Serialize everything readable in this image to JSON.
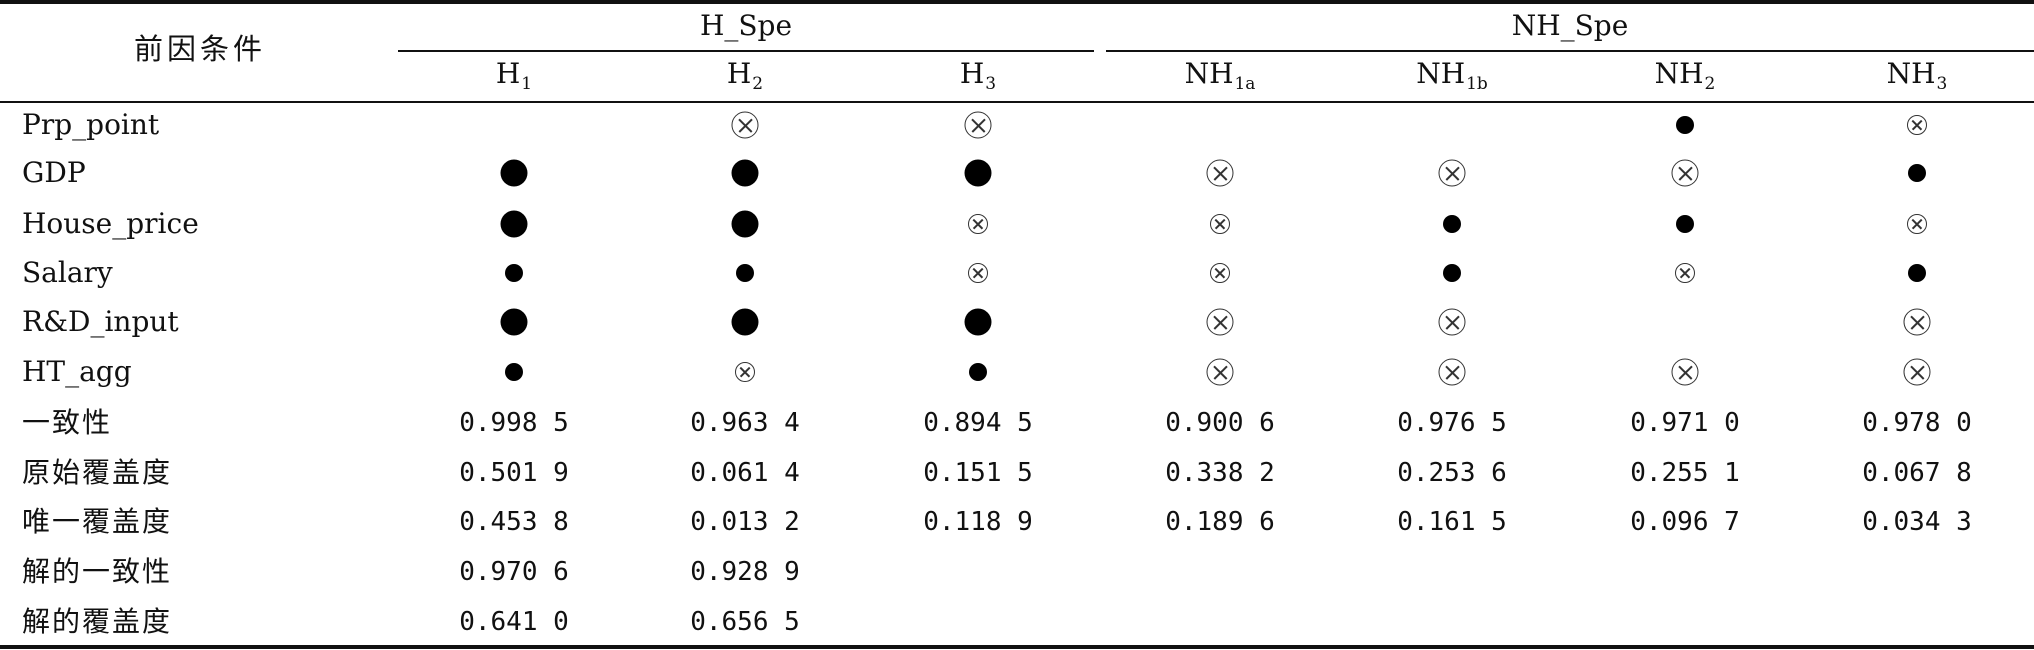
{
  "table": {
    "corner_header": "前因条件",
    "groups": [
      {
        "label": "H_Spe"
      },
      {
        "label": "NH_Spe"
      }
    ],
    "columns": [
      {
        "base": "H",
        "sub": "1"
      },
      {
        "base": "H",
        "sub": "2"
      },
      {
        "base": "H",
        "sub": "3"
      },
      {
        "base": "NH",
        "sub": "1a"
      },
      {
        "base": "NH",
        "sub": "1b"
      },
      {
        "base": "NH",
        "sub": "2"
      },
      {
        "base": "NH",
        "sub": "3"
      }
    ],
    "symbol_legend_names": [
      "core-present-icon",
      "peripheral-present-icon",
      "core-absent-icon",
      "peripheral-absent-icon"
    ],
    "condition_rows": [
      {
        "label": "Prp_point",
        "cells": [
          "",
          "core-absent",
          "core-absent",
          "",
          "",
          "peripheral-present",
          "peripheral-absent"
        ]
      },
      {
        "label": "GDP",
        "cells": [
          "core-present",
          "core-present",
          "core-present",
          "core-absent",
          "core-absent",
          "core-absent",
          "peripheral-present"
        ]
      },
      {
        "label": "House_price",
        "cells": [
          "core-present",
          "core-present",
          "peripheral-absent",
          "peripheral-absent",
          "peripheral-present",
          "peripheral-present",
          "peripheral-absent"
        ]
      },
      {
        "label": "Salary",
        "cells": [
          "peripheral-present",
          "peripheral-present",
          "peripheral-absent",
          "peripheral-absent",
          "peripheral-present",
          "peripheral-absent",
          "peripheral-present"
        ]
      },
      {
        "label": "R&D_input",
        "cells": [
          "core-present",
          "core-present",
          "core-present",
          "core-absent",
          "core-absent",
          "",
          "core-absent"
        ]
      },
      {
        "label": "HT_agg",
        "cells": [
          "peripheral-present",
          "peripheral-absent",
          "peripheral-present",
          "core-absent",
          "core-absent",
          "core-absent",
          "core-absent"
        ]
      }
    ],
    "metric_rows": [
      {
        "label": "一致性",
        "values": [
          "0.998 5",
          "0.963 4",
          "0.894 5",
          "0.900 6",
          "0.976 5",
          "0.971 0",
          "0.978 0"
        ]
      },
      {
        "label": "原始覆盖度",
        "values": [
          "0.501 9",
          "0.061 4",
          "0.151 5",
          "0.338 2",
          "0.253 6",
          "0.255 1",
          "0.067 8"
        ]
      },
      {
        "label": "唯一覆盖度",
        "values": [
          "0.453 8",
          "0.013 2",
          "0.118 9",
          "0.189 6",
          "0.161 5",
          "0.096 7",
          "0.034 3"
        ]
      },
      {
        "label": "解的一致性",
        "values": [
          "0.970 6",
          "0.928 9",
          "",
          "",
          "",
          "",
          ""
        ]
      },
      {
        "label": "解的覆盖度",
        "values": [
          "0.641 0",
          "0.656 5",
          "",
          "",
          "",
          "",
          ""
        ]
      }
    ]
  }
}
